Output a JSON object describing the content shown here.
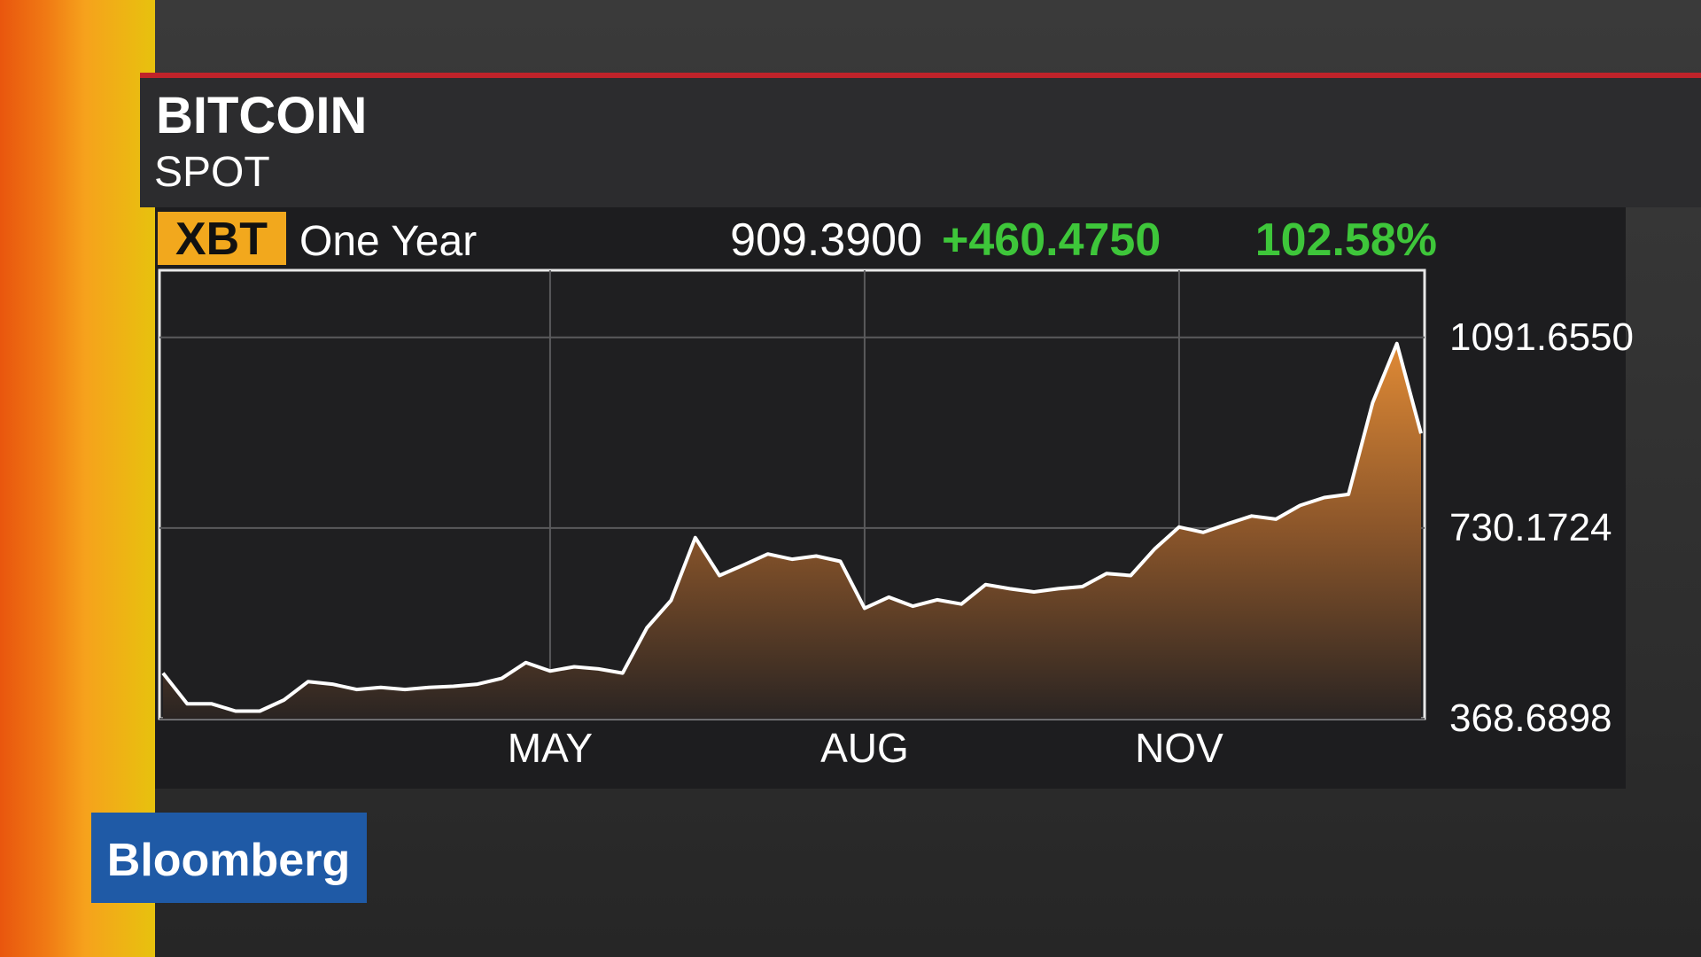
{
  "header": {
    "title": "BITCOIN",
    "subtitle": "SPOT",
    "ticker": "XBT",
    "period": "One Year",
    "last": "909.3900",
    "change": "+460.4750",
    "change_pct": "102.58%"
  },
  "brand": "Bloomberg",
  "chart_data": {
    "type": "area",
    "categories": [
      null,
      null,
      null,
      null,
      null,
      null,
      null,
      null,
      null,
      null,
      null,
      null,
      null,
      null,
      null,
      null,
      "MAY",
      null,
      null,
      null,
      null,
      null,
      null,
      null,
      null,
      null,
      null,
      null,
      null,
      "AUG",
      null,
      null,
      null,
      null,
      null,
      null,
      null,
      null,
      null,
      null,
      null,
      null,
      "NOV",
      null,
      null,
      null,
      null,
      null,
      null,
      null,
      null,
      null,
      null
    ],
    "series": [
      {
        "name": "XBT",
        "color": "#ffffff",
        "values": [
          455,
          397,
          397,
          383,
          383,
          404,
          439,
          434,
          424,
          428,
          424,
          428,
          430,
          434,
          445,
          475,
          459,
          467,
          463,
          455,
          541,
          593,
          712,
          640,
          660,
          681,
          671,
          677,
          667,
          578,
          599,
          582,
          594,
          586,
          623,
          615,
          609,
          615,
          619,
          644,
          640,
          691,
          732,
          722,
          738,
          753,
          747,
          773,
          788,
          794,
          968,
          1080,
          909.39
        ]
      }
    ],
    "ylim": [
      368.6898,
      1219
    ],
    "yticks": [
      368.6898,
      730.1724,
      {
        "value": 1091.655,
        "label": "1091.6550"
      }
    ],
    "grid": true
  }
}
